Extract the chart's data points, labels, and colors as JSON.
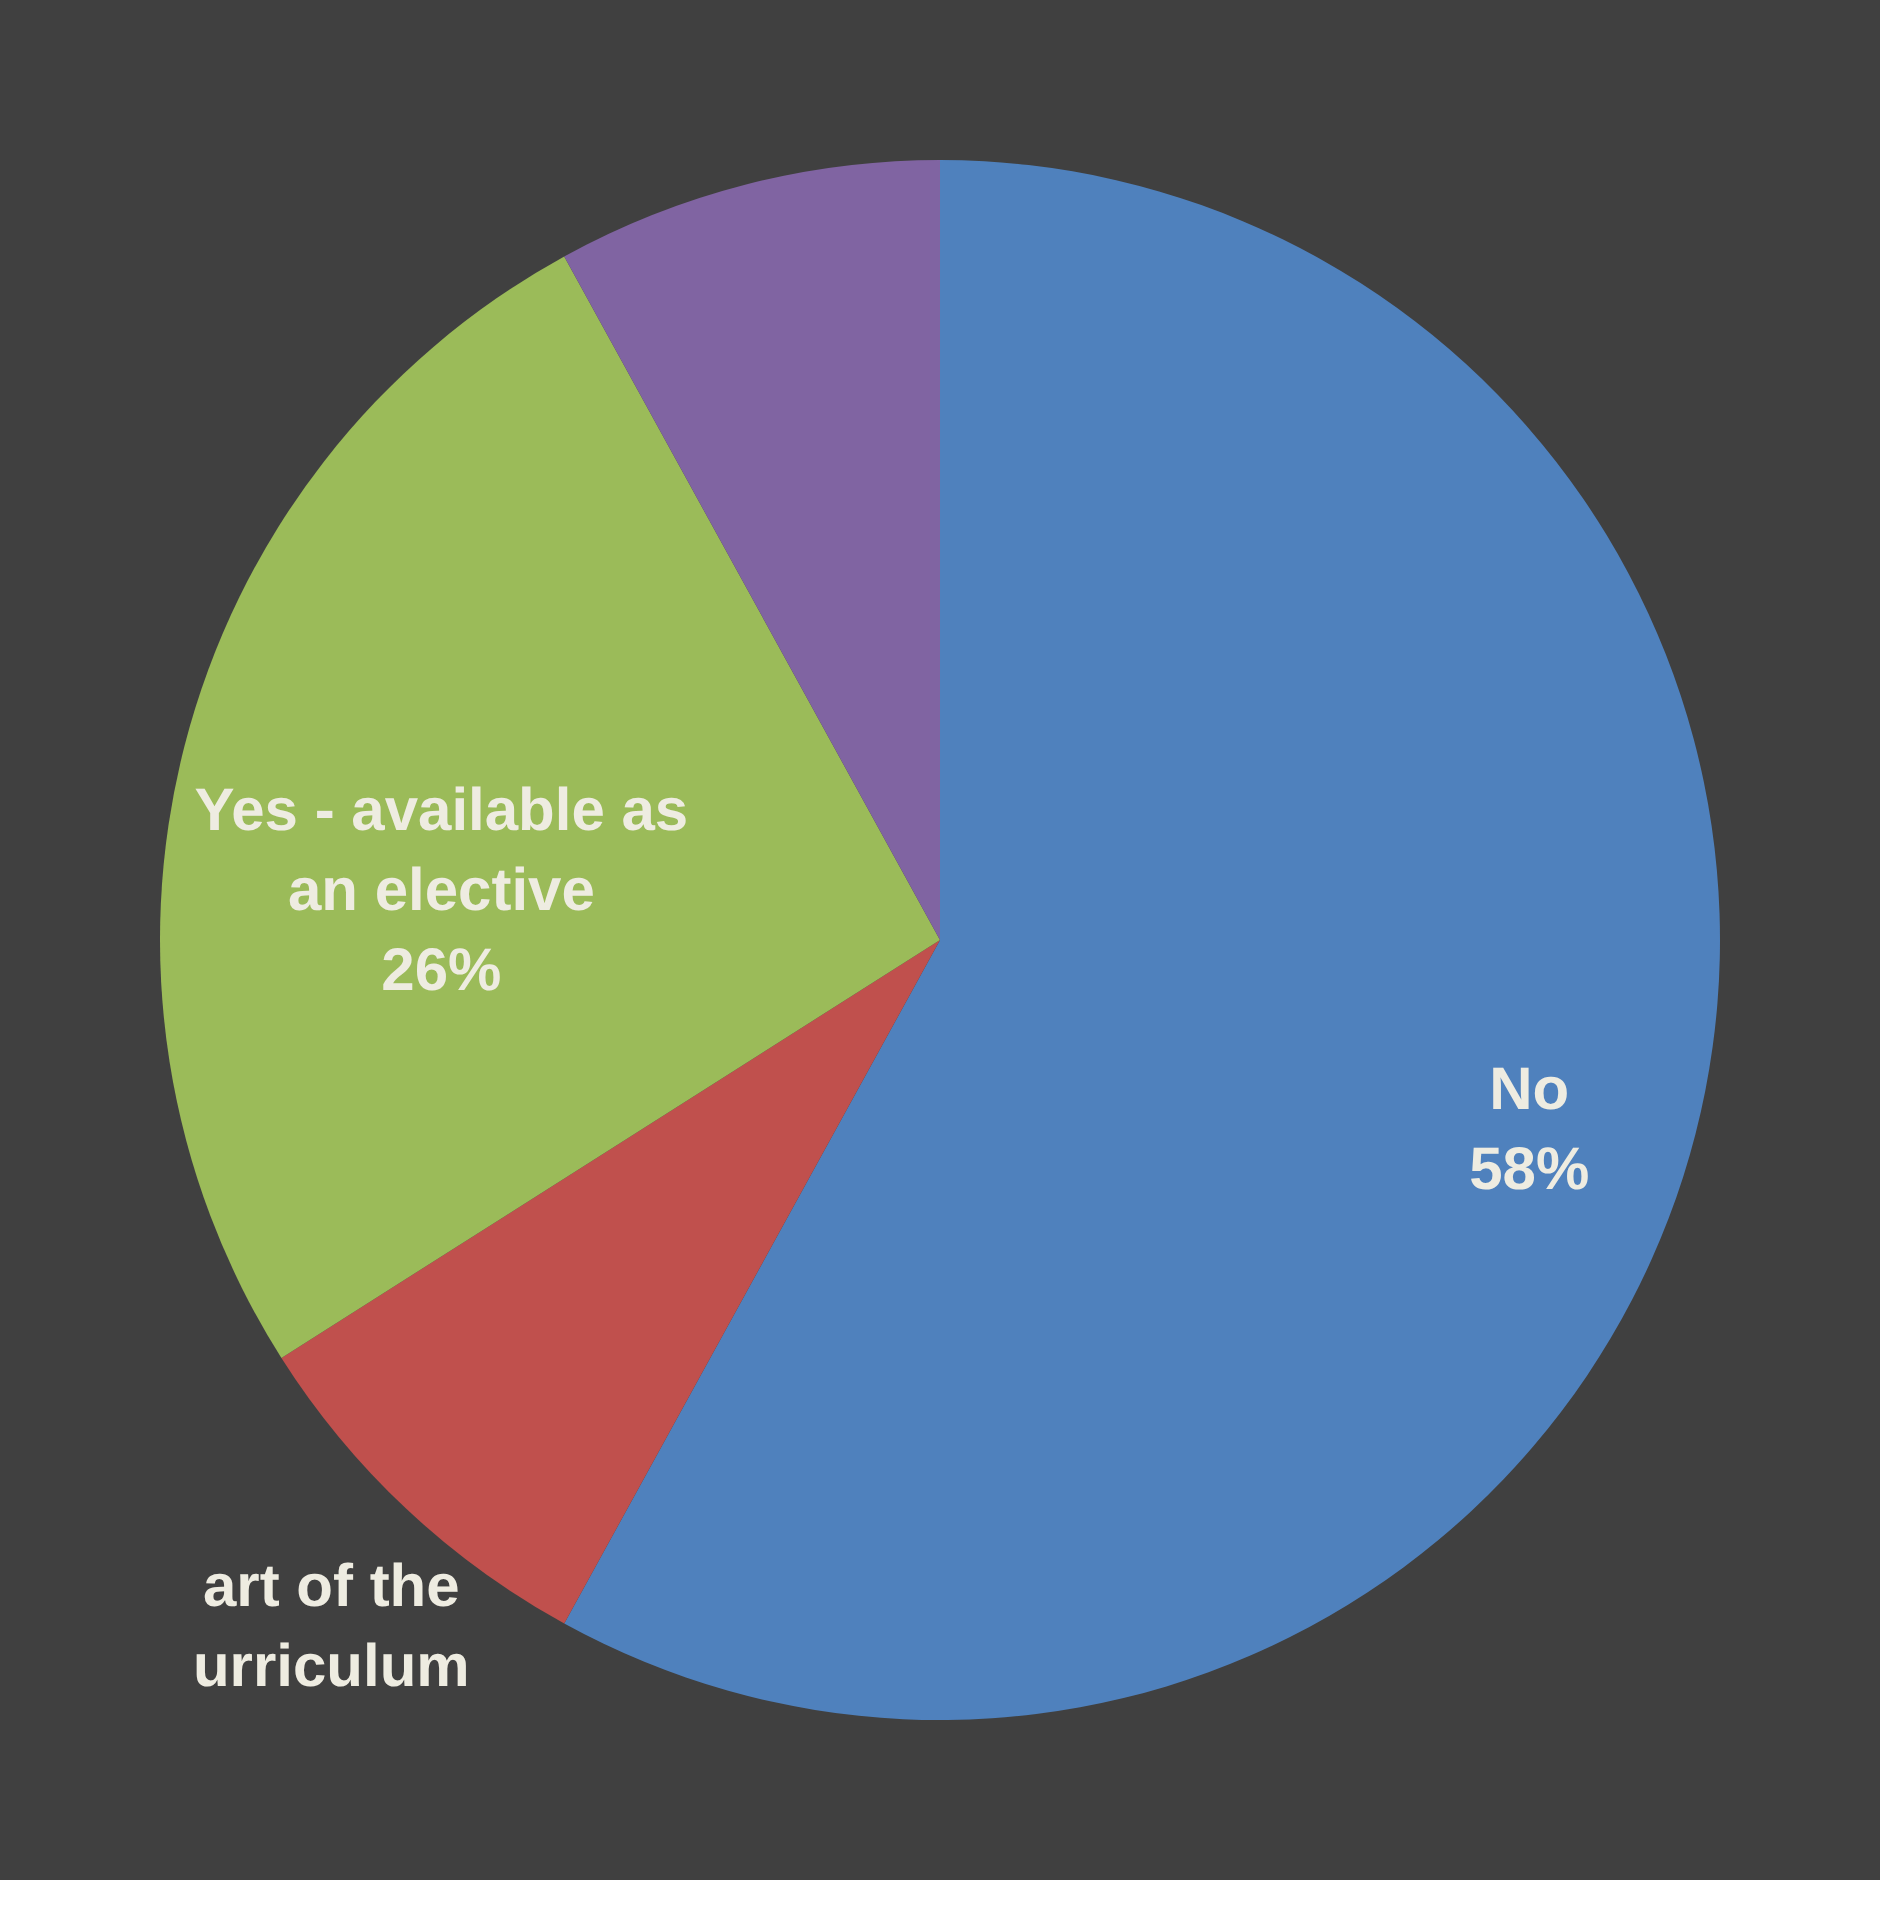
{
  "chart_data": {
    "type": "pie",
    "categories": [
      "No",
      "art of the urriculum",
      "Yes - available as an elective",
      null
    ],
    "values": [
      58,
      8,
      26,
      8
    ],
    "colors": [
      "#4f81bd",
      "#c0504d",
      "#9bbb59",
      "#8064a2"
    ],
    "value_labels": [
      "58%",
      null,
      "26%",
      null
    ],
    "legend": false
  }
}
